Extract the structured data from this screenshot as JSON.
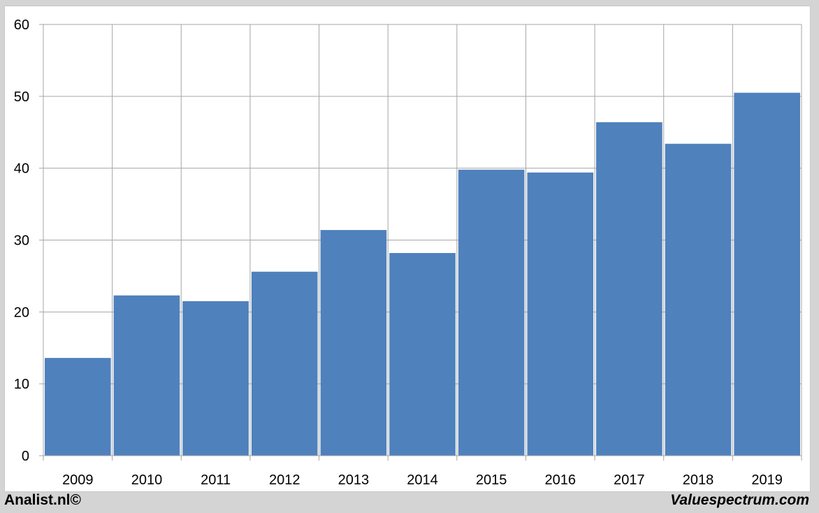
{
  "chart_data": {
    "type": "bar",
    "title": "",
    "xlabel": "",
    "ylabel": "",
    "categories": [
      "2009",
      "2010",
      "2011",
      "2012",
      "2013",
      "2014",
      "2015",
      "2016",
      "2017",
      "2018",
      "2019"
    ],
    "values": [
      13.6,
      22.3,
      21.5,
      25.6,
      31.4,
      28.2,
      39.8,
      39.4,
      46.4,
      43.4,
      50.5
    ],
    "ylim": [
      0,
      60
    ],
    "yticks": [
      0,
      10,
      20,
      30,
      40,
      50,
      60
    ],
    "grid": true,
    "bar_color": "#4f81bd",
    "grid_color": "#a6a6a6"
  },
  "footer": {
    "left_text": "Analist.nl©",
    "right_text": "Valuespectrum.com"
  }
}
